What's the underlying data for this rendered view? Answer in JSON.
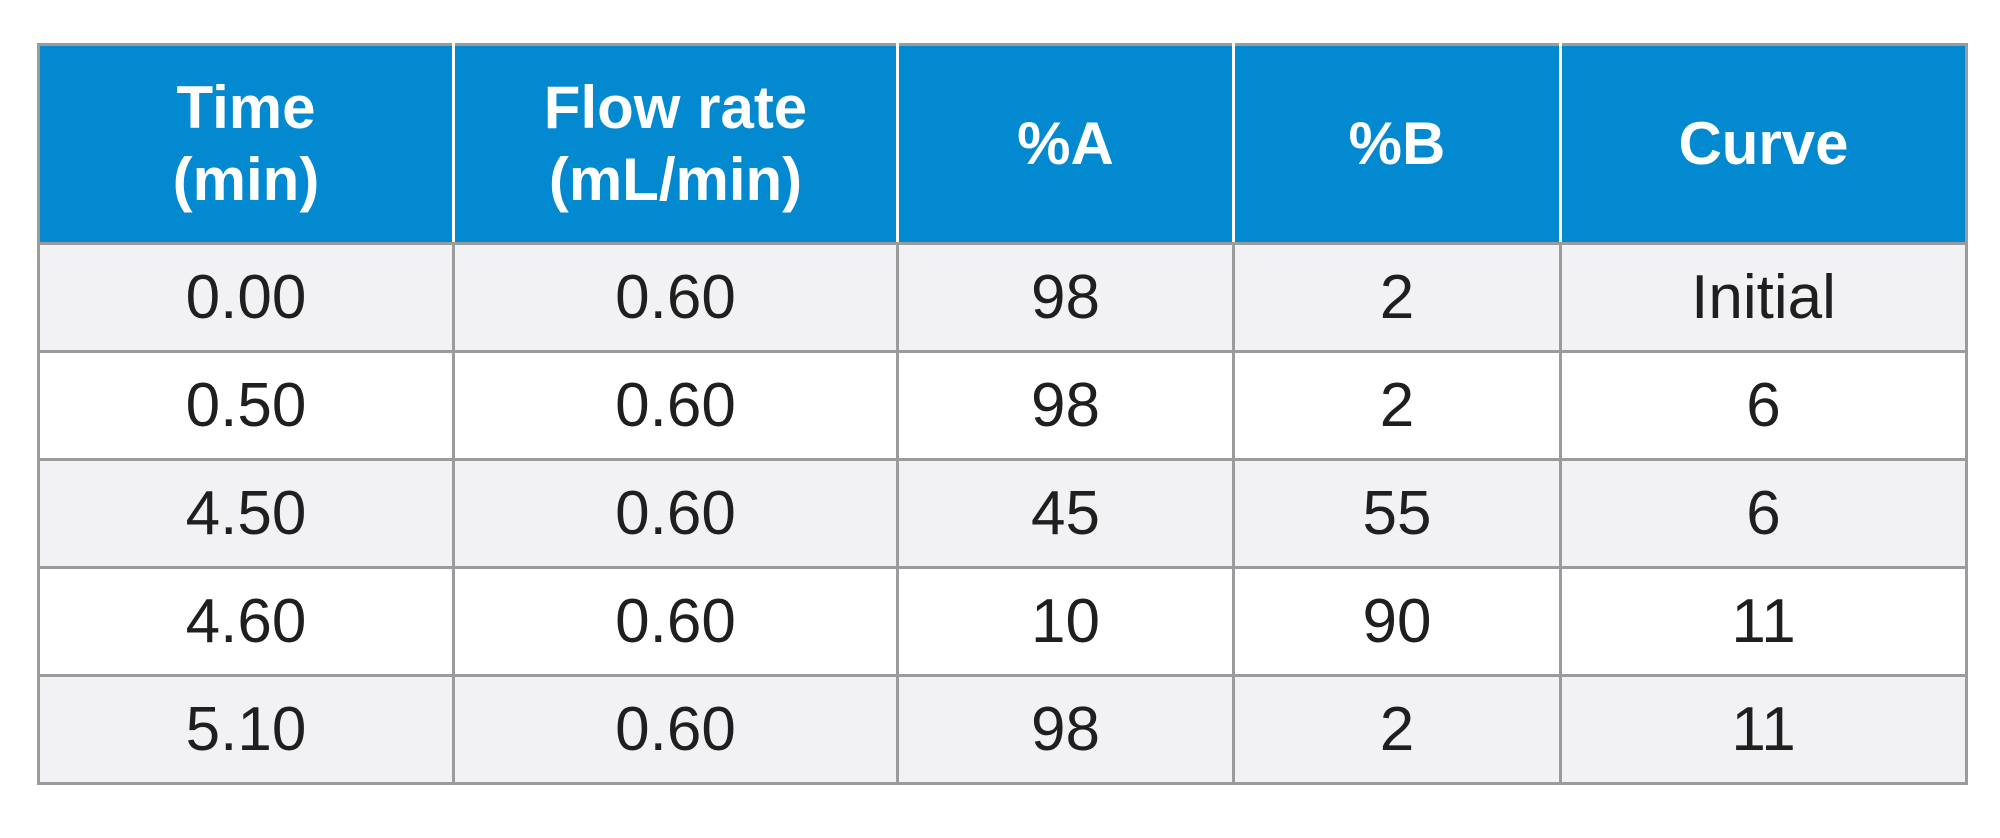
{
  "table": {
    "headers": [
      {
        "line1": "Time",
        "line2": "(min)"
      },
      {
        "line1": "Flow rate",
        "line2": "(mL/min)"
      },
      {
        "line1": "%A",
        "line2": ""
      },
      {
        "line1": "%B",
        "line2": ""
      },
      {
        "line1": "Curve",
        "line2": ""
      }
    ],
    "rows": [
      [
        "0.00",
        "0.60",
        "98",
        "2",
        "Initial"
      ],
      [
        "0.50",
        "0.60",
        "98",
        "2",
        "6"
      ],
      [
        "4.50",
        "0.60",
        "45",
        "55",
        "6"
      ],
      [
        "4.60",
        "0.60",
        "10",
        "90",
        "11"
      ],
      [
        "5.10",
        "0.60",
        "98",
        "2",
        "11"
      ]
    ]
  },
  "colors": {
    "header_background": "#0389d0",
    "header_text": "#ffffff",
    "row_odd_background": "#f2f2f4",
    "row_even_background": "#ffffff",
    "border": "#9a9b9d",
    "cell_text": "#1f1f20"
  }
}
